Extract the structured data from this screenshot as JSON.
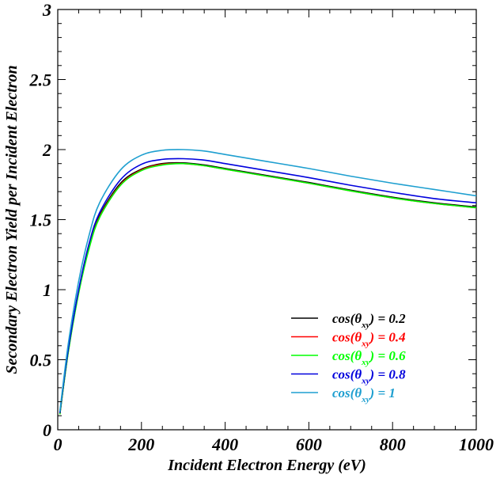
{
  "chart_data": {
    "type": "line",
    "title": "",
    "xlabel": "Incident Electron Energy (eV)",
    "ylabel": "Secondary Electron Yield per Incident Electron",
    "xlim": [
      0,
      1000
    ],
    "ylim": [
      0,
      3
    ],
    "xticks": [
      0,
      200,
      400,
      600,
      800,
      1000
    ],
    "xtick_labels": [
      "0",
      "200",
      "400",
      "600",
      "800",
      "1000"
    ],
    "yticks": [
      0,
      0.5,
      1,
      1.5,
      2,
      2.5,
      3
    ],
    "ytick_labels": [
      "0",
      "0.5",
      "1",
      "1.5",
      "2",
      "2.5",
      "3"
    ],
    "grid": false,
    "legend_position": "bottom-right",
    "series": [
      {
        "legend_prefix": "cos(θ",
        "legend_sub": "xy",
        "legend_suffix": ") = 0.2",
        "color": "#000000",
        "x": [
          5,
          25,
          50,
          75,
          100,
          150,
          200,
          250,
          300,
          350,
          400,
          500,
          600,
          700,
          800,
          900,
          1000
        ],
        "values": [
          0.11,
          0.56,
          0.99,
          1.31,
          1.53,
          1.76,
          1.86,
          1.9,
          1.905,
          1.89,
          1.865,
          1.815,
          1.765,
          1.71,
          1.66,
          1.62,
          1.59
        ]
      },
      {
        "legend_prefix": "cos(θ",
        "legend_sub": "xy",
        "legend_suffix": ") = 0.4",
        "color": "#ff0000",
        "x": [
          5,
          25,
          50,
          75,
          100,
          150,
          200,
          250,
          300,
          350,
          400,
          500,
          600,
          700,
          800,
          900,
          1000
        ],
        "values": [
          0.11,
          0.555,
          0.98,
          1.3,
          1.52,
          1.75,
          1.855,
          1.895,
          1.9,
          1.885,
          1.86,
          1.81,
          1.76,
          1.705,
          1.655,
          1.615,
          1.585
        ]
      },
      {
        "legend_prefix": "cos(θ",
        "legend_sub": "xy",
        "legend_suffix": ") = 0.6",
        "color": "#00ff00",
        "x": [
          5,
          25,
          50,
          75,
          100,
          150,
          200,
          250,
          300,
          350,
          400,
          500,
          600,
          700,
          800,
          900,
          1000
        ],
        "values": [
          0.11,
          0.55,
          0.975,
          1.295,
          1.515,
          1.745,
          1.85,
          1.89,
          1.9,
          1.885,
          1.86,
          1.81,
          1.76,
          1.705,
          1.655,
          1.615,
          1.585
        ]
      },
      {
        "legend_prefix": "cos(θ",
        "legend_sub": "xy",
        "legend_suffix": ") = 0.8",
        "color": "#0000dd",
        "x": [
          5,
          25,
          50,
          75,
          100,
          150,
          200,
          250,
          300,
          350,
          400,
          500,
          600,
          700,
          800,
          900,
          1000
        ],
        "values": [
          0.12,
          0.57,
          1.0,
          1.33,
          1.55,
          1.785,
          1.895,
          1.93,
          1.935,
          1.925,
          1.9,
          1.85,
          1.8,
          1.745,
          1.695,
          1.65,
          1.62
        ]
      },
      {
        "legend_prefix": "cos(θ",
        "legend_sub": "xy",
        "legend_suffix": ") = 1",
        "color": "#1e9fd0",
        "x": [
          5,
          25,
          50,
          75,
          100,
          150,
          200,
          250,
          300,
          350,
          400,
          500,
          600,
          700,
          800,
          900,
          1000
        ],
        "values": [
          0.13,
          0.61,
          1.06,
          1.39,
          1.62,
          1.855,
          1.96,
          1.995,
          2.0,
          1.99,
          1.965,
          1.915,
          1.865,
          1.81,
          1.76,
          1.715,
          1.67
        ]
      }
    ]
  }
}
